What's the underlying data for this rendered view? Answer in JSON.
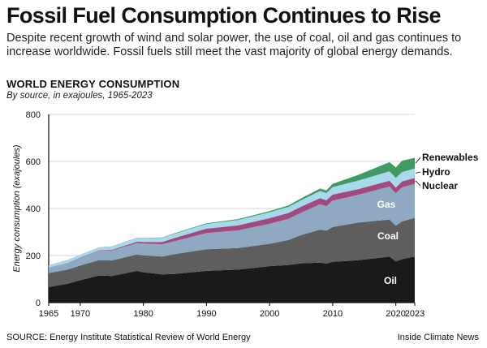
{
  "headline": "Fossil Fuel Consumption Continues to Rise",
  "dek": "Despite recent growth of wind and solar power, the use of coal, oil and gas continues to increase worldwide. Fossil fuels still meet the vast majority of global energy demands.",
  "footer": {
    "source": "SOURCE: Energy Institute Statistical Review of World Energy",
    "credit": "Inside Climate News"
  },
  "chart_data": {
    "type": "area",
    "stacked": true,
    "title": "WORLD ENERGY CONSUMPTION",
    "subtitle": "By source, in exajoules, 1965-2023",
    "xlabel": "",
    "ylabel": "Energy consumption (exajoules)",
    "xlim": [
      1965,
      2023
    ],
    "ylim": [
      0,
      800
    ],
    "x_ticks": [
      "1965",
      "1970",
      "1980",
      "1990",
      "2000",
      "2010",
      "2020",
      "2023"
    ],
    "y_ticks": [
      "0",
      "200",
      "400",
      "600",
      "800"
    ],
    "grid": true,
    "x": [
      1965,
      1968,
      1970,
      1973,
      1975,
      1979,
      1980,
      1983,
      1985,
      1990,
      1995,
      2000,
      2003,
      2005,
      2008,
      2009,
      2010,
      2014,
      2019,
      2020,
      2021,
      2023
    ],
    "series": [
      {
        "name": "Oil",
        "color": "#1a1a1a",
        "values": [
          66,
          80,
          95,
          115,
          113,
          135,
          129,
          120,
          122,
          135,
          140,
          155,
          160,
          167,
          170,
          166,
          173,
          180,
          195,
          175,
          185,
          195
        ]
      },
      {
        "name": "Coal",
        "color": "#5e5e5e",
        "values": [
          60,
          60,
          63,
          65,
          66,
          70,
          72,
          76,
          84,
          92,
          92,
          95,
          106,
          120,
          140,
          140,
          148,
          160,
          158,
          152,
          160,
          165
        ]
      },
      {
        "name": "Gas",
        "color": "#8fa9c2",
        "values": [
          22,
          28,
          33,
          40,
          42,
          48,
          50,
          52,
          55,
          68,
          75,
          85,
          90,
          95,
          108,
          104,
          112,
          118,
          140,
          138,
          145,
          145
        ]
      },
      {
        "name": "Nuclear",
        "color": "#a14a7f",
        "values": [
          0.5,
          1,
          1,
          2,
          3,
          6,
          7,
          10,
          14,
          19,
          21,
          24,
          25,
          26,
          26,
          25,
          26,
          24,
          25,
          24,
          25,
          25
        ]
      },
      {
        "name": "Hydro",
        "color": "#a8d8ec",
        "values": [
          10,
          12,
          12,
          13,
          14,
          16,
          16,
          17,
          18,
          20,
          23,
          25,
          26,
          27,
          30,
          30,
          32,
          36,
          40,
          41,
          40,
          40
        ]
      },
      {
        "name": "Renewables",
        "color": "#3f9a63",
        "values": [
          0.3,
          0.4,
          0.5,
          0.6,
          0.8,
          1,
          1,
          1.5,
          2,
          3,
          4,
          5,
          6,
          8,
          11,
          12,
          14,
          24,
          39,
          44,
          48,
          45
        ]
      }
    ],
    "inline_labels": [
      "Oil",
      "Coal",
      "Gas"
    ],
    "legend_labels": [
      "Renewables",
      "Hydro",
      "Nuclear"
    ]
  }
}
